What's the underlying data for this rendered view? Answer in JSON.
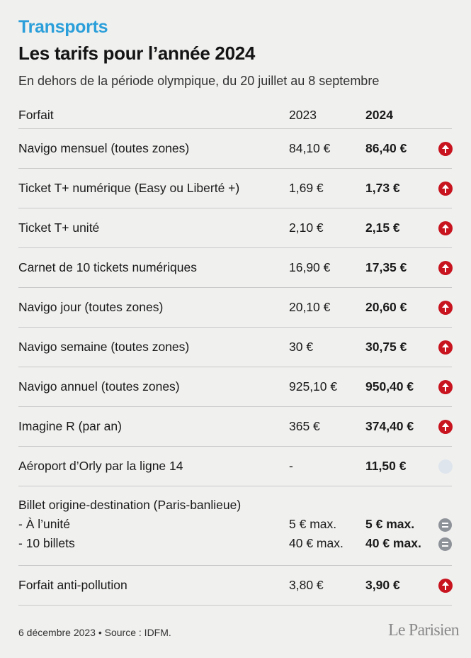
{
  "header": {
    "kicker": "Transports",
    "title": "Les tarifs pour l’année 2024",
    "subtitle": "En dehors de la période olympique, du 20 juillet au 8 septembre"
  },
  "table": {
    "columns": {
      "label": "Forfait",
      "y2023": "2023",
      "y2024": "2024"
    },
    "rows": [
      {
        "label": "Navigo mensuel (toutes zones)",
        "y2023": "84,10 €",
        "y2024": "86,40 €",
        "trend": "up-arrow-icon"
      },
      {
        "label": "Ticket T+ numérique (Easy ou Liberté +)",
        "y2023": "1,69 €",
        "y2024": "1,73 €",
        "trend": "up-arrow-icon"
      },
      {
        "label": "Ticket T+ unité",
        "y2023": "2,10 €",
        "y2024": "2,15 €",
        "trend": "up-arrow-icon"
      },
      {
        "label": "Carnet de 10 tickets numériques",
        "y2023": "16,90 €",
        "y2024": "17,35 €",
        "trend": "up-arrow-icon"
      },
      {
        "label": "Navigo jour (toutes zones)",
        "y2023": "20,10 €",
        "y2024": "20,60 €",
        "trend": "up-arrow-icon"
      },
      {
        "label": "Navigo semaine (toutes zones)",
        "y2023": "30 €",
        "y2024": "30,75 €",
        "trend": "up-arrow-icon"
      },
      {
        "label": "Navigo annuel (toutes zones)",
        "y2023": "925,10 €",
        "y2024": "950,40 €",
        "trend": "up-arrow-icon"
      },
      {
        "label": "Imagine R (par an)",
        "y2023": "365 €",
        "y2024": "374,40 €",
        "trend": "up-arrow-icon"
      },
      {
        "label": "Aéroport d’Orly par la ligne 14",
        "y2023": "-",
        "y2024": "11,50 €",
        "trend": "new-circle-icon"
      }
    ],
    "billet": {
      "label": "Billet origine-destination (Paris-banlieue)",
      "sub1_label": "- À l’unité",
      "sub1_2023": "5 € max.",
      "sub1_2024": "5 € max.",
      "sub2_label": "- 10 billets",
      "sub2_2023": "40 € max.",
      "sub2_2024": "40 € max."
    },
    "anti_pollution": {
      "label": "Forfait anti-pollution",
      "y2023": "3,80 €",
      "y2024": "3,90 €",
      "trend": "up-arrow-icon"
    }
  },
  "footer": {
    "source": "6 décembre 2023 • Source : IDFM.",
    "logo": "Le Parisien"
  },
  "colors": {
    "accent": "#2b9fd9",
    "increase": "#c8141e",
    "unchanged": "#8e9299",
    "new": "#dfe5ec",
    "background": "#f0f0ef"
  }
}
